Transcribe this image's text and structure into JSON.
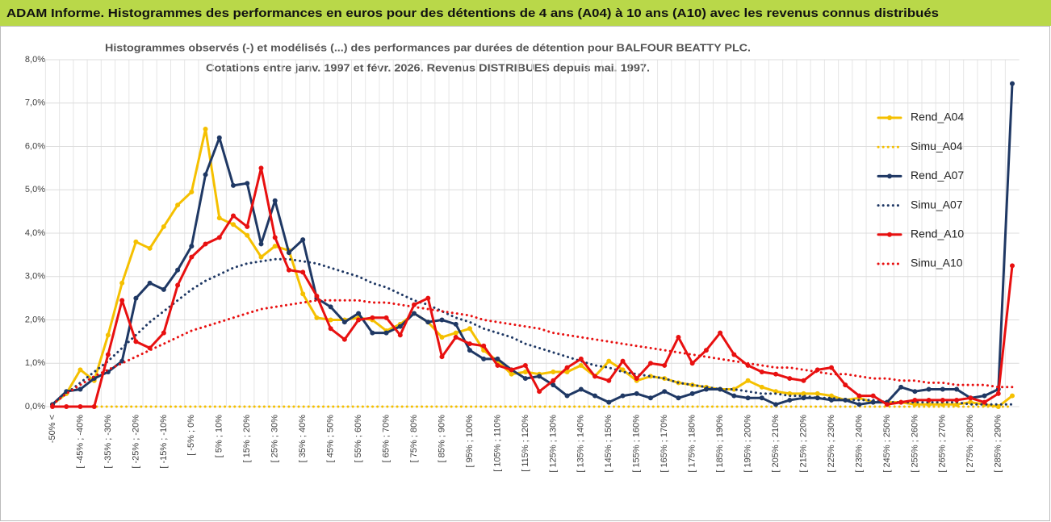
{
  "chart_data": {
    "type": "line",
    "title": "ADAM Informe. Histogrammes des performances en euros pour des détentions de 4 ans (A04) à 10 ans (A10) avec les revenus connus distribués",
    "subtitle": [
      "Histogrammes observés (-) et modélisés (...) des performances par durées de détention pour BALFOUR BEATTY PLC.",
      "Cotations entre janv. 1997 et févr. 2026. Revenus DISTRIBUES depuis mai. 1997."
    ],
    "categories": [
      "-50% <",
      null,
      "[ -45% ; -40%",
      null,
      "[ -35% ; -30%",
      null,
      "[ -25% ; -20%",
      null,
      "[ -15% ; -10%",
      null,
      "[ -5% ; 0%",
      null,
      "[ 5% ; 10%",
      null,
      "[ 15% ; 20%",
      null,
      "[ 25% ; 30%",
      null,
      "[ 35% ; 40%",
      null,
      "[ 45% ; 50%",
      null,
      "[ 55% ; 60%",
      null,
      "[ 65% ; 70%",
      null,
      "[ 75% ; 80%",
      null,
      "[ 85% ; 90%",
      null,
      "[ 95% ; 100%",
      null,
      "[ 105% ; 110%",
      null,
      "[ 115% ; 120%",
      null,
      "[ 125% ; 130%",
      null,
      "[ 135% ; 140%",
      null,
      "[ 145% ; 150%",
      null,
      "[ 155% ; 160%",
      null,
      "[ 165% ; 170%",
      null,
      "[ 175% ; 180%",
      null,
      "[ 185% ; 190%",
      null,
      "[ 195% ; 200%",
      null,
      "[ 205% ; 210%",
      null,
      "[ 215% ; 220%",
      null,
      "[ 225% ; 230%",
      null,
      "[ 235% ; 240%",
      null,
      "[ 245% ; 250%",
      null,
      "[ 255% ; 260%",
      null,
      "[ 265% ; 270%",
      null,
      "[ 275% ; 280%",
      null,
      "[ 285% ; 290%",
      null
    ],
    "series": [
      {
        "name": "Rend_A04",
        "color": "#f5c000",
        "style": "solid",
        "markers": true,
        "values": [
          0.05,
          0.3,
          0.85,
          0.6,
          1.65,
          2.85,
          3.8,
          3.65,
          4.15,
          4.65,
          4.95,
          6.4,
          4.35,
          4.2,
          3.95,
          3.45,
          3.7,
          3.6,
          2.6,
          2.05,
          2.0,
          2.0,
          2.05,
          2.0,
          1.75,
          1.9,
          2.15,
          1.95,
          1.6,
          1.7,
          1.8,
          1.3,
          1.05,
          0.75,
          0.8,
          0.75,
          0.8,
          0.8,
          0.95,
          0.7,
          1.05,
          0.85,
          0.6,
          0.7,
          0.65,
          0.55,
          0.5,
          0.45,
          0.4,
          0.4,
          0.6,
          0.45,
          0.35,
          0.3,
          0.3,
          0.3,
          0.25,
          0.15,
          0.2,
          0.1,
          0.1,
          0.1,
          0.05,
          0.05,
          0.05,
          0.05,
          0.1,
          0.05,
          0.0,
          0.25
        ]
      },
      {
        "name": "Simu_A04",
        "color": "#f5c000",
        "style": "dotted",
        "markers": false,
        "values": [
          0,
          0,
          0,
          0,
          0,
          0,
          0,
          0,
          0,
          0,
          0,
          0,
          0,
          0,
          0,
          0,
          0,
          0,
          0,
          0,
          0,
          0,
          0,
          0,
          0,
          0,
          0,
          0,
          0,
          0,
          0,
          0,
          0,
          0,
          0,
          0,
          0,
          0,
          0,
          0,
          0,
          0,
          0,
          0,
          0,
          0,
          0,
          0,
          0,
          0,
          0,
          0,
          0,
          0,
          0,
          0,
          0,
          0,
          0,
          0,
          0,
          0,
          0,
          0,
          0,
          0,
          0,
          0,
          0,
          0
        ]
      },
      {
        "name": "Rend_A07",
        "color": "#1f3864",
        "style": "solid",
        "markers": true,
        "values": [
          0.05,
          0.35,
          0.4,
          0.65,
          0.8,
          1.05,
          2.5,
          2.85,
          2.7,
          3.15,
          3.7,
          5.35,
          6.2,
          5.1,
          5.15,
          3.75,
          4.75,
          3.55,
          3.85,
          2.5,
          2.3,
          1.95,
          2.15,
          1.7,
          1.7,
          1.85,
          2.15,
          1.95,
          2.0,
          1.9,
          1.3,
          1.1,
          1.1,
          0.85,
          0.65,
          0.7,
          0.5,
          0.25,
          0.4,
          0.25,
          0.1,
          0.25,
          0.3,
          0.2,
          0.35,
          0.2,
          0.3,
          0.4,
          0.4,
          0.25,
          0.2,
          0.2,
          0.05,
          0.15,
          0.2,
          0.2,
          0.15,
          0.15,
          0.05,
          0.1,
          0.1,
          0.45,
          0.35,
          0.4,
          0.4,
          0.4,
          0.2,
          0.25,
          0.4,
          7.45
        ]
      },
      {
        "name": "Simu_A07",
        "color": "#1f3864",
        "style": "dotted",
        "markers": false,
        "values": [
          0.05,
          0.3,
          0.55,
          0.8,
          1.05,
          1.35,
          1.65,
          1.95,
          2.2,
          2.45,
          2.7,
          2.9,
          3.05,
          3.2,
          3.3,
          3.35,
          3.4,
          3.4,
          3.35,
          3.3,
          3.2,
          3.1,
          3.0,
          2.85,
          2.75,
          2.6,
          2.45,
          2.35,
          2.2,
          2.05,
          1.95,
          1.8,
          1.7,
          1.6,
          1.45,
          1.35,
          1.25,
          1.15,
          1.05,
          0.95,
          0.9,
          0.8,
          0.75,
          0.7,
          0.65,
          0.55,
          0.5,
          0.45,
          0.4,
          0.4,
          0.35,
          0.3,
          0.3,
          0.25,
          0.25,
          0.2,
          0.2,
          0.15,
          0.15,
          0.15,
          0.1,
          0.1,
          0.1,
          0.1,
          0.1,
          0.1,
          0.05,
          0.05,
          0.05,
          0.05
        ]
      },
      {
        "name": "Rend_A10",
        "color": "#e81010",
        "style": "solid",
        "markers": true,
        "values": [
          0.0,
          0.0,
          0.0,
          0.0,
          1.2,
          2.45,
          1.5,
          1.35,
          1.7,
          2.8,
          3.45,
          3.75,
          3.9,
          4.4,
          4.15,
          5.5,
          3.9,
          3.15,
          3.1,
          2.55,
          1.8,
          1.55,
          2.0,
          2.05,
          2.05,
          1.65,
          2.35,
          2.5,
          1.15,
          1.6,
          1.45,
          1.4,
          0.95,
          0.85,
          0.95,
          0.35,
          0.6,
          0.9,
          1.1,
          0.7,
          0.6,
          1.05,
          0.65,
          1.0,
          0.95,
          1.6,
          1.0,
          1.3,
          1.7,
          1.2,
          0.95,
          0.8,
          0.75,
          0.65,
          0.6,
          0.85,
          0.9,
          0.5,
          0.25,
          0.25,
          0.05,
          0.1,
          0.15,
          0.15,
          0.15,
          0.15,
          0.2,
          0.1,
          0.3,
          3.25
        ]
      },
      {
        "name": "Simu_A10",
        "color": "#e81010",
        "style": "dotted",
        "markers": false,
        "values": [
          0.05,
          0.3,
          0.5,
          0.7,
          0.85,
          1.0,
          1.15,
          1.3,
          1.45,
          1.6,
          1.75,
          1.85,
          1.95,
          2.05,
          2.15,
          2.25,
          2.3,
          2.35,
          2.4,
          2.45,
          2.45,
          2.45,
          2.45,
          2.4,
          2.4,
          2.35,
          2.3,
          2.25,
          2.2,
          2.15,
          2.1,
          2.0,
          1.95,
          1.9,
          1.85,
          1.8,
          1.7,
          1.65,
          1.6,
          1.55,
          1.5,
          1.45,
          1.4,
          1.35,
          1.3,
          1.25,
          1.2,
          1.15,
          1.1,
          1.05,
          1.0,
          0.95,
          0.9,
          0.9,
          0.85,
          0.8,
          0.75,
          0.75,
          0.7,
          0.65,
          0.65,
          0.6,
          0.6,
          0.55,
          0.55,
          0.5,
          0.5,
          0.5,
          0.45,
          0.45
        ]
      }
    ],
    "ylim": [
      0,
      8
    ],
    "yticks": [
      {
        "value": 0,
        "label": "0,0%"
      },
      {
        "value": 1,
        "label": "1,0%"
      },
      {
        "value": 2,
        "label": "2,0%"
      },
      {
        "value": 3,
        "label": "3,0%"
      },
      {
        "value": 4,
        "label": "4,0%"
      },
      {
        "value": 5,
        "label": "5,0%"
      },
      {
        "value": 6,
        "label": "6,0%"
      },
      {
        "value": 7,
        "label": "7,0%"
      },
      {
        "value": 8,
        "label": "8,0%"
      }
    ],
    "grid": true,
    "legend": "right"
  }
}
